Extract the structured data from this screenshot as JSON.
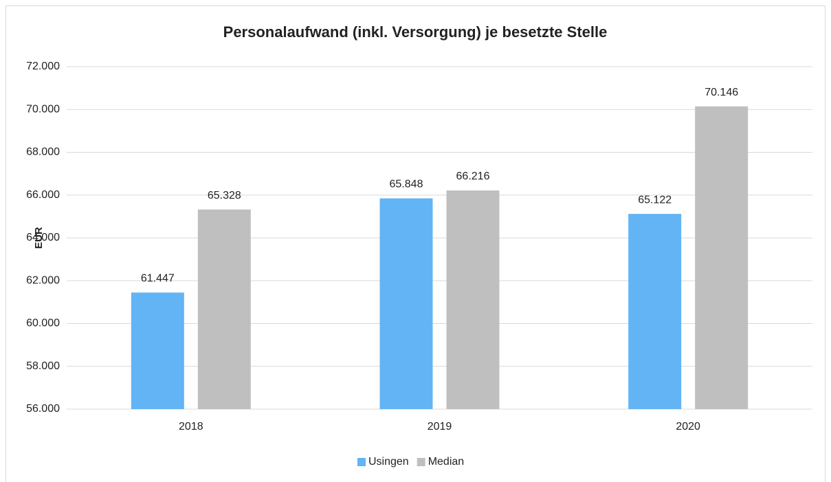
{
  "chart_data": {
    "type": "bar",
    "title": "Personalaufwand (inkl. Versorgung)  je besetzte Stelle",
    "y_label": "EUR",
    "categories": [
      "2018",
      "2019",
      "2020"
    ],
    "series": [
      {
        "name": "Usingen",
        "color": "#63b4f4",
        "values": [
          61447,
          65848,
          65122
        ],
        "value_labels": [
          "61.447",
          "65.848",
          "65.122"
        ]
      },
      {
        "name": "Median",
        "color": "#bfbfbf",
        "values": [
          65328,
          66216,
          70146
        ],
        "value_labels": [
          "65.328",
          "66.216",
          "70.146"
        ]
      }
    ],
    "ylim": [
      56000,
      72000
    ],
    "yticks": [
      {
        "value": 56000,
        "label": "56.000"
      },
      {
        "value": 58000,
        "label": "58.000"
      },
      {
        "value": 60000,
        "label": "60.000"
      },
      {
        "value": 62000,
        "label": "62.000"
      },
      {
        "value": 64000,
        "label": "64.000"
      },
      {
        "value": 66000,
        "label": "66.000"
      },
      {
        "value": 68000,
        "label": "68.000"
      },
      {
        "value": 70000,
        "label": "70.000"
      },
      {
        "value": 72000,
        "label": "72.000"
      }
    ],
    "grid": true,
    "legend": "bottom"
  }
}
